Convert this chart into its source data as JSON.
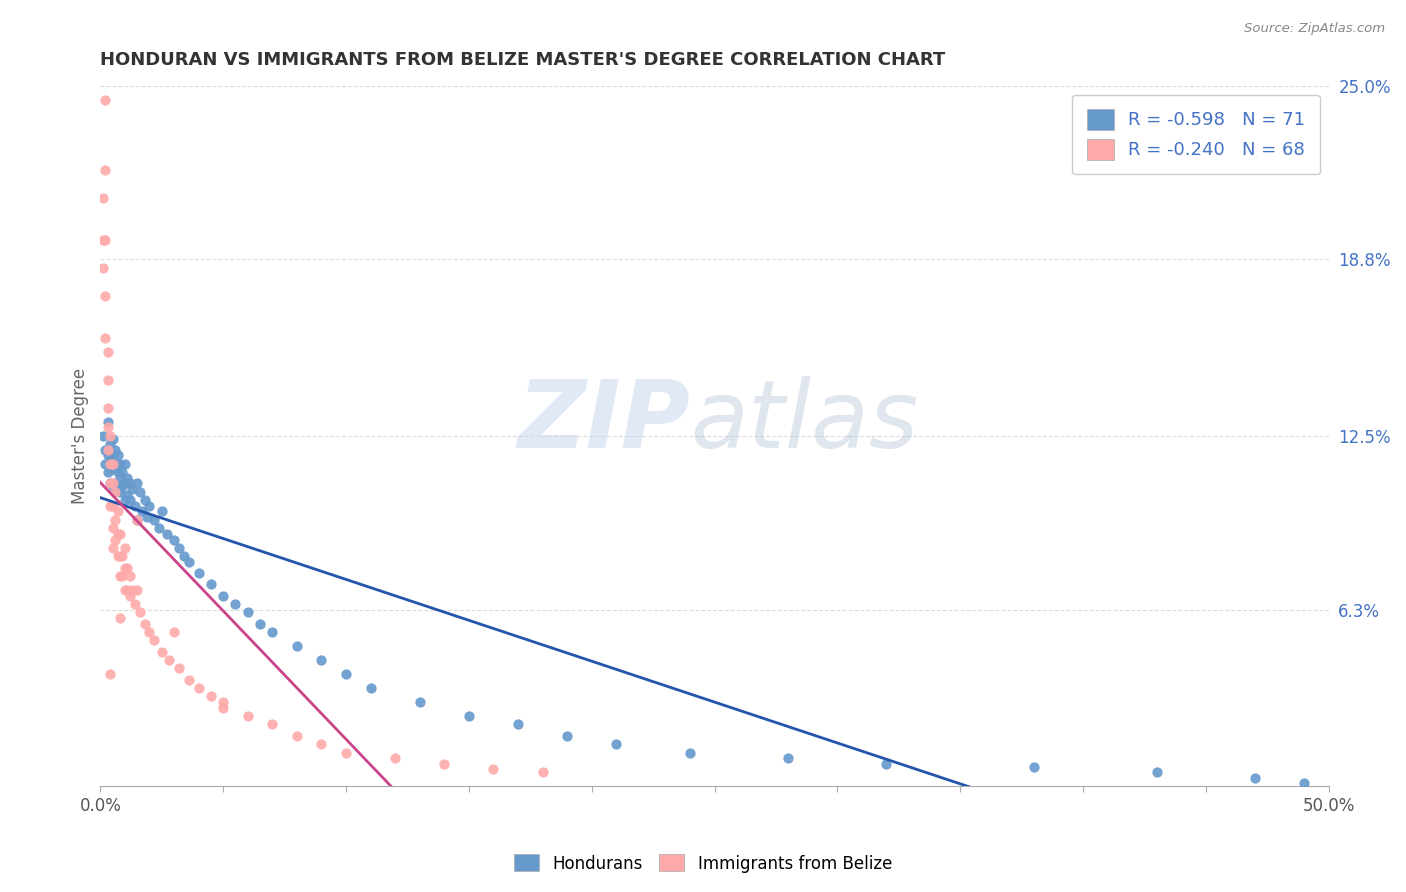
{
  "title": "HONDURAN VS IMMIGRANTS FROM BELIZE MASTER'S DEGREE CORRELATION CHART",
  "source_text": "Source: ZipAtlas.com",
  "ylabel": "Master's Degree",
  "xlim": [
    0.0,
    0.5
  ],
  "ylim": [
    0.0,
    0.25
  ],
  "honduran_color": "#6699cc",
  "honduran_line_color": "#2255aa",
  "belize_color": "#ffaaaa",
  "belize_line_color": "#cc4488",
  "honduran_R": -0.598,
  "honduran_N": 71,
  "belize_R": -0.24,
  "belize_N": 68,
  "watermark_zip": "ZIP",
  "watermark_atlas": "atlas",
  "legend_label_1": "Hondurans",
  "legend_label_2": "Immigrants from Belize",
  "background_color": "#ffffff",
  "grid_color": "#cccccc",
  "title_color": "#333333",
  "axis_label_color": "#4472c4",
  "honduran_scatter_x": [
    0.001,
    0.002,
    0.002,
    0.003,
    0.003,
    0.003,
    0.004,
    0.004,
    0.004,
    0.005,
    0.005,
    0.005,
    0.005,
    0.006,
    0.006,
    0.006,
    0.007,
    0.007,
    0.007,
    0.008,
    0.008,
    0.008,
    0.009,
    0.009,
    0.01,
    0.01,
    0.01,
    0.011,
    0.011,
    0.012,
    0.012,
    0.013,
    0.014,
    0.015,
    0.015,
    0.016,
    0.017,
    0.018,
    0.019,
    0.02,
    0.022,
    0.024,
    0.025,
    0.027,
    0.03,
    0.032,
    0.034,
    0.036,
    0.04,
    0.045,
    0.05,
    0.055,
    0.06,
    0.065,
    0.07,
    0.08,
    0.09,
    0.1,
    0.11,
    0.13,
    0.15,
    0.17,
    0.19,
    0.21,
    0.24,
    0.28,
    0.32,
    0.38,
    0.43,
    0.47,
    0.49
  ],
  "honduran_scatter_y": [
    0.125,
    0.12,
    0.115,
    0.13,
    0.118,
    0.112,
    0.122,
    0.116,
    0.108,
    0.124,
    0.118,
    0.113,
    0.107,
    0.12,
    0.115,
    0.108,
    0.118,
    0.112,
    0.106,
    0.115,
    0.11,
    0.105,
    0.112,
    0.107,
    0.115,
    0.108,
    0.102,
    0.11,
    0.104,
    0.108,
    0.102,
    0.106,
    0.1,
    0.108,
    0.095,
    0.105,
    0.098,
    0.102,
    0.096,
    0.1,
    0.095,
    0.092,
    0.098,
    0.09,
    0.088,
    0.085,
    0.082,
    0.08,
    0.076,
    0.072,
    0.068,
    0.065,
    0.062,
    0.058,
    0.055,
    0.05,
    0.045,
    0.04,
    0.035,
    0.03,
    0.025,
    0.022,
    0.018,
    0.015,
    0.012,
    0.01,
    0.008,
    0.007,
    0.005,
    0.003,
    0.001
  ],
  "belize_scatter_x": [
    0.001,
    0.001,
    0.001,
    0.002,
    0.002,
    0.002,
    0.002,
    0.003,
    0.003,
    0.003,
    0.003,
    0.003,
    0.004,
    0.004,
    0.004,
    0.004,
    0.005,
    0.005,
    0.005,
    0.005,
    0.005,
    0.006,
    0.006,
    0.006,
    0.007,
    0.007,
    0.007,
    0.008,
    0.008,
    0.008,
    0.009,
    0.009,
    0.01,
    0.01,
    0.01,
    0.011,
    0.011,
    0.012,
    0.012,
    0.013,
    0.014,
    0.015,
    0.016,
    0.018,
    0.02,
    0.022,
    0.025,
    0.028,
    0.032,
    0.036,
    0.04,
    0.045,
    0.05,
    0.06,
    0.07,
    0.08,
    0.09,
    0.1,
    0.12,
    0.14,
    0.16,
    0.18,
    0.03,
    0.05,
    0.015,
    0.008,
    0.004,
    0.002
  ],
  "belize_scatter_y": [
    0.21,
    0.195,
    0.185,
    0.22,
    0.195,
    0.175,
    0.16,
    0.155,
    0.145,
    0.135,
    0.128,
    0.12,
    0.125,
    0.115,
    0.108,
    0.1,
    0.115,
    0.108,
    0.1,
    0.092,
    0.085,
    0.105,
    0.095,
    0.088,
    0.098,
    0.09,
    0.082,
    0.09,
    0.082,
    0.075,
    0.082,
    0.075,
    0.085,
    0.078,
    0.07,
    0.078,
    0.07,
    0.075,
    0.068,
    0.07,
    0.065,
    0.07,
    0.062,
    0.058,
    0.055,
    0.052,
    0.048,
    0.045,
    0.042,
    0.038,
    0.035,
    0.032,
    0.028,
    0.025,
    0.022,
    0.018,
    0.015,
    0.012,
    0.01,
    0.008,
    0.006,
    0.005,
    0.055,
    0.03,
    0.095,
    0.06,
    0.04,
    0.245
  ],
  "ytick_positions": [
    0.063,
    0.125,
    0.188,
    0.25
  ],
  "ytick_labels": [
    "6.3%",
    "12.5%",
    "18.8%",
    "25.0%"
  ]
}
